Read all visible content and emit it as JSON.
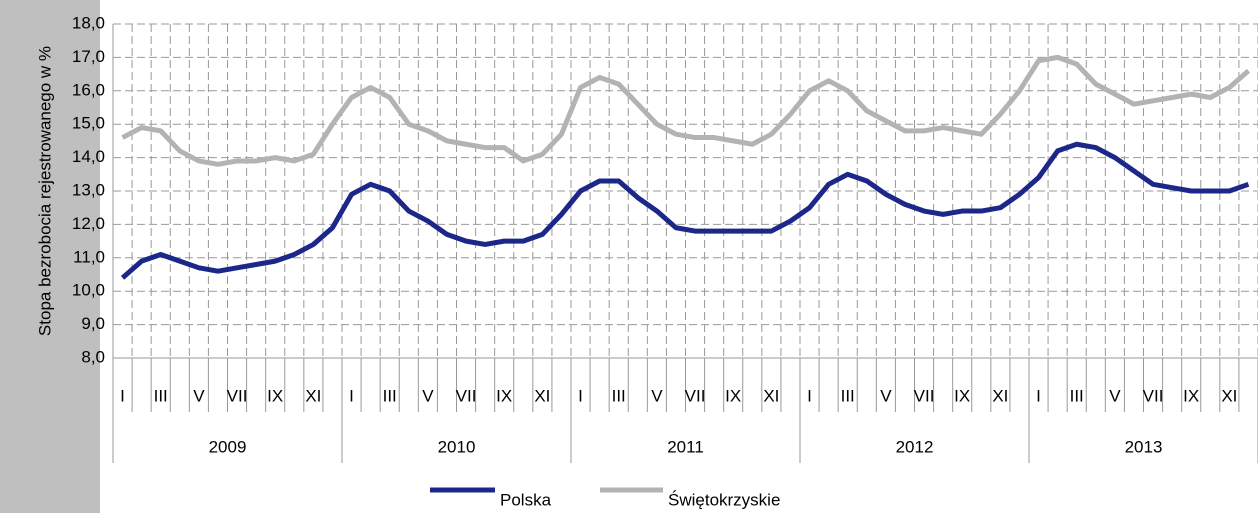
{
  "chart_data": {
    "type": "line",
    "y_axis_label": "Stopa bezrobocia rejestrowanego w %",
    "categories": [
      "I",
      null,
      "III",
      null,
      "V",
      null,
      "VII",
      null,
      "IX",
      null,
      "XI",
      null,
      "I",
      null,
      "III",
      null,
      "V",
      null,
      "VII",
      null,
      "IX",
      null,
      "XI",
      null,
      "I",
      null,
      "III",
      null,
      "V",
      null,
      "VII",
      null,
      "IX",
      null,
      "XI",
      null,
      "I",
      null,
      "III",
      null,
      "V",
      null,
      "VII",
      null,
      "IX",
      null,
      "XI",
      null,
      "I",
      null,
      "III",
      null,
      "V",
      null,
      "VII",
      null,
      "IX",
      null,
      "XI",
      null
    ],
    "year_labels": [
      "2009",
      "2010",
      "2011",
      "2012",
      "2013"
    ],
    "series": [
      {
        "name": "Polska",
        "color": "#1c2889",
        "values": [
          10.4,
          10.9,
          11.1,
          10.9,
          10.7,
          10.6,
          10.7,
          10.8,
          10.9,
          11.1,
          11.4,
          11.9,
          12.9,
          13.2,
          13.0,
          12.4,
          12.1,
          11.7,
          11.5,
          11.4,
          11.5,
          11.5,
          11.7,
          12.3,
          13.0,
          13.3,
          13.3,
          12.8,
          12.4,
          11.9,
          11.8,
          11.8,
          11.8,
          11.8,
          11.8,
          12.1,
          12.5,
          13.2,
          13.5,
          13.3,
          12.9,
          12.6,
          12.4,
          12.3,
          12.4,
          12.4,
          12.5,
          12.9,
          13.4,
          14.2,
          14.4,
          14.3,
          14.0,
          13.6,
          13.2,
          13.1,
          13.0,
          13.0,
          13.0,
          13.2
        ]
      },
      {
        "name": "Świętokrzyskie",
        "color": "#b3b3b3",
        "values": [
          14.6,
          14.9,
          14.8,
          14.2,
          13.9,
          13.8,
          13.9,
          13.9,
          14.0,
          13.9,
          14.1,
          15.0,
          15.8,
          16.1,
          15.8,
          15.0,
          14.8,
          14.5,
          14.4,
          14.3,
          14.3,
          13.9,
          14.1,
          14.7,
          16.1,
          16.4,
          16.2,
          15.6,
          15.0,
          14.7,
          14.6,
          14.6,
          14.5,
          14.4,
          14.7,
          15.3,
          16.0,
          16.3,
          16.0,
          15.4,
          15.1,
          14.8,
          14.8,
          14.9,
          14.8,
          14.7,
          15.3,
          16.0,
          16.9,
          17.0,
          16.8,
          16.2,
          15.9,
          15.6,
          15.7,
          15.8,
          15.9,
          15.8,
          16.1,
          16.6
        ]
      }
    ],
    "ylim": [
      8,
      18
    ],
    "yticks": [
      {
        "value": 8,
        "label": "8,0"
      },
      {
        "value": 9,
        "label": "9,0"
      },
      {
        "value": 10,
        "label": "10,0"
      },
      {
        "value": 11,
        "label": "11,0"
      },
      {
        "value": 12,
        "label": "12,0"
      },
      {
        "value": 13,
        "label": "13,0"
      },
      {
        "value": 14,
        "label": "14,0"
      },
      {
        "value": 15,
        "label": "15,0"
      },
      {
        "value": 16,
        "label": "16,0"
      },
      {
        "value": 17,
        "label": "17,0"
      },
      {
        "value": 18,
        "label": "18,0"
      }
    ],
    "grid": true,
    "legend": "bottom"
  }
}
